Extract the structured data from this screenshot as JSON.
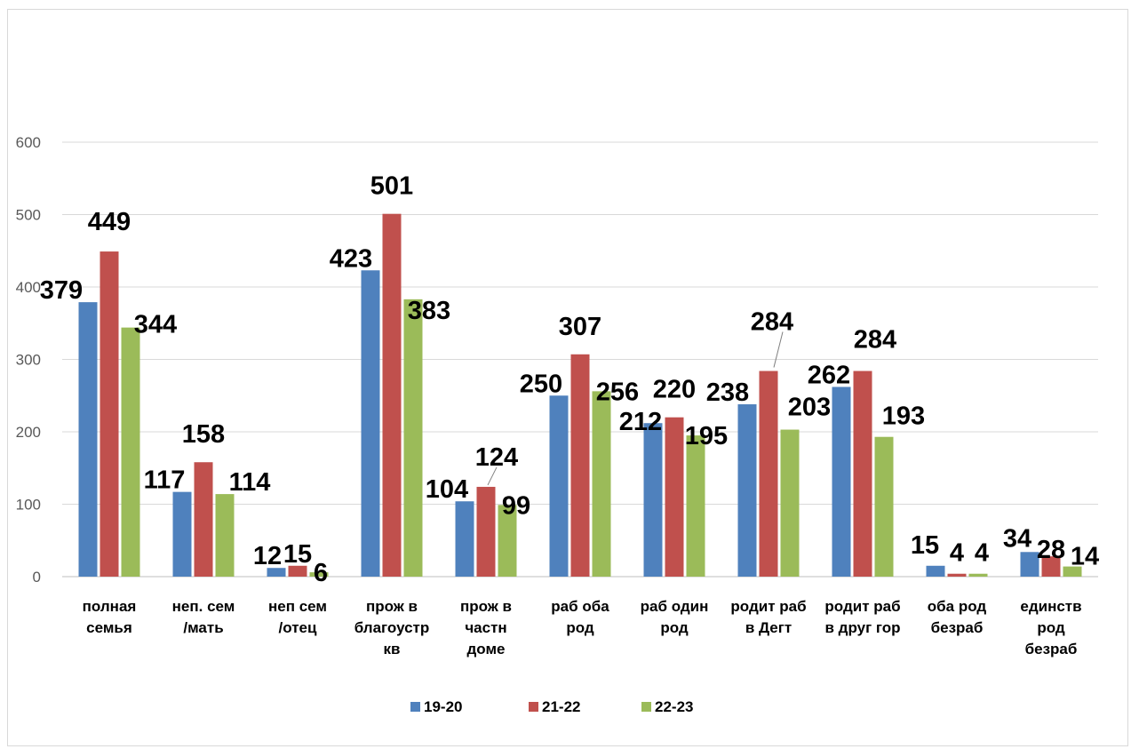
{
  "chart_data": {
    "type": "bar",
    "categories": [
      [
        "полная",
        "семья"
      ],
      [
        "неп. сем",
        "/мать"
      ],
      [
        "неп сем",
        "/отец"
      ],
      [
        "прож в",
        "благоустр",
        "кв"
      ],
      [
        "прож в",
        "частн",
        "доме"
      ],
      [
        "раб оба",
        "род"
      ],
      [
        "раб один",
        "род"
      ],
      [
        "родит раб",
        "в Дегт"
      ],
      [
        "родит раб",
        "в друг гор"
      ],
      [
        "оба род",
        "безраб"
      ],
      [
        "единств",
        "род",
        "безраб"
      ]
    ],
    "series": [
      {
        "name": "19-20",
        "color": "#4f81bd",
        "values": [
          379,
          117,
          12,
          423,
          104,
          250,
          212,
          238,
          262,
          15,
          34
        ]
      },
      {
        "name": "21-22",
        "color": "#c0504d",
        "values": [
          449,
          158,
          15,
          501,
          124,
          307,
          220,
          284,
          284,
          4,
          28
        ]
      },
      {
        "name": "22-23",
        "color": "#9bbb59",
        "values": [
          344,
          114,
          6,
          383,
          99,
          256,
          195,
          203,
          193,
          4,
          14
        ]
      }
    ],
    "ylim": [
      0,
      600
    ],
    "yticks": [
      0,
      100,
      200,
      300,
      400,
      500,
      600
    ],
    "grid": true,
    "legend_position": "bottom",
    "data_labels": true
  }
}
